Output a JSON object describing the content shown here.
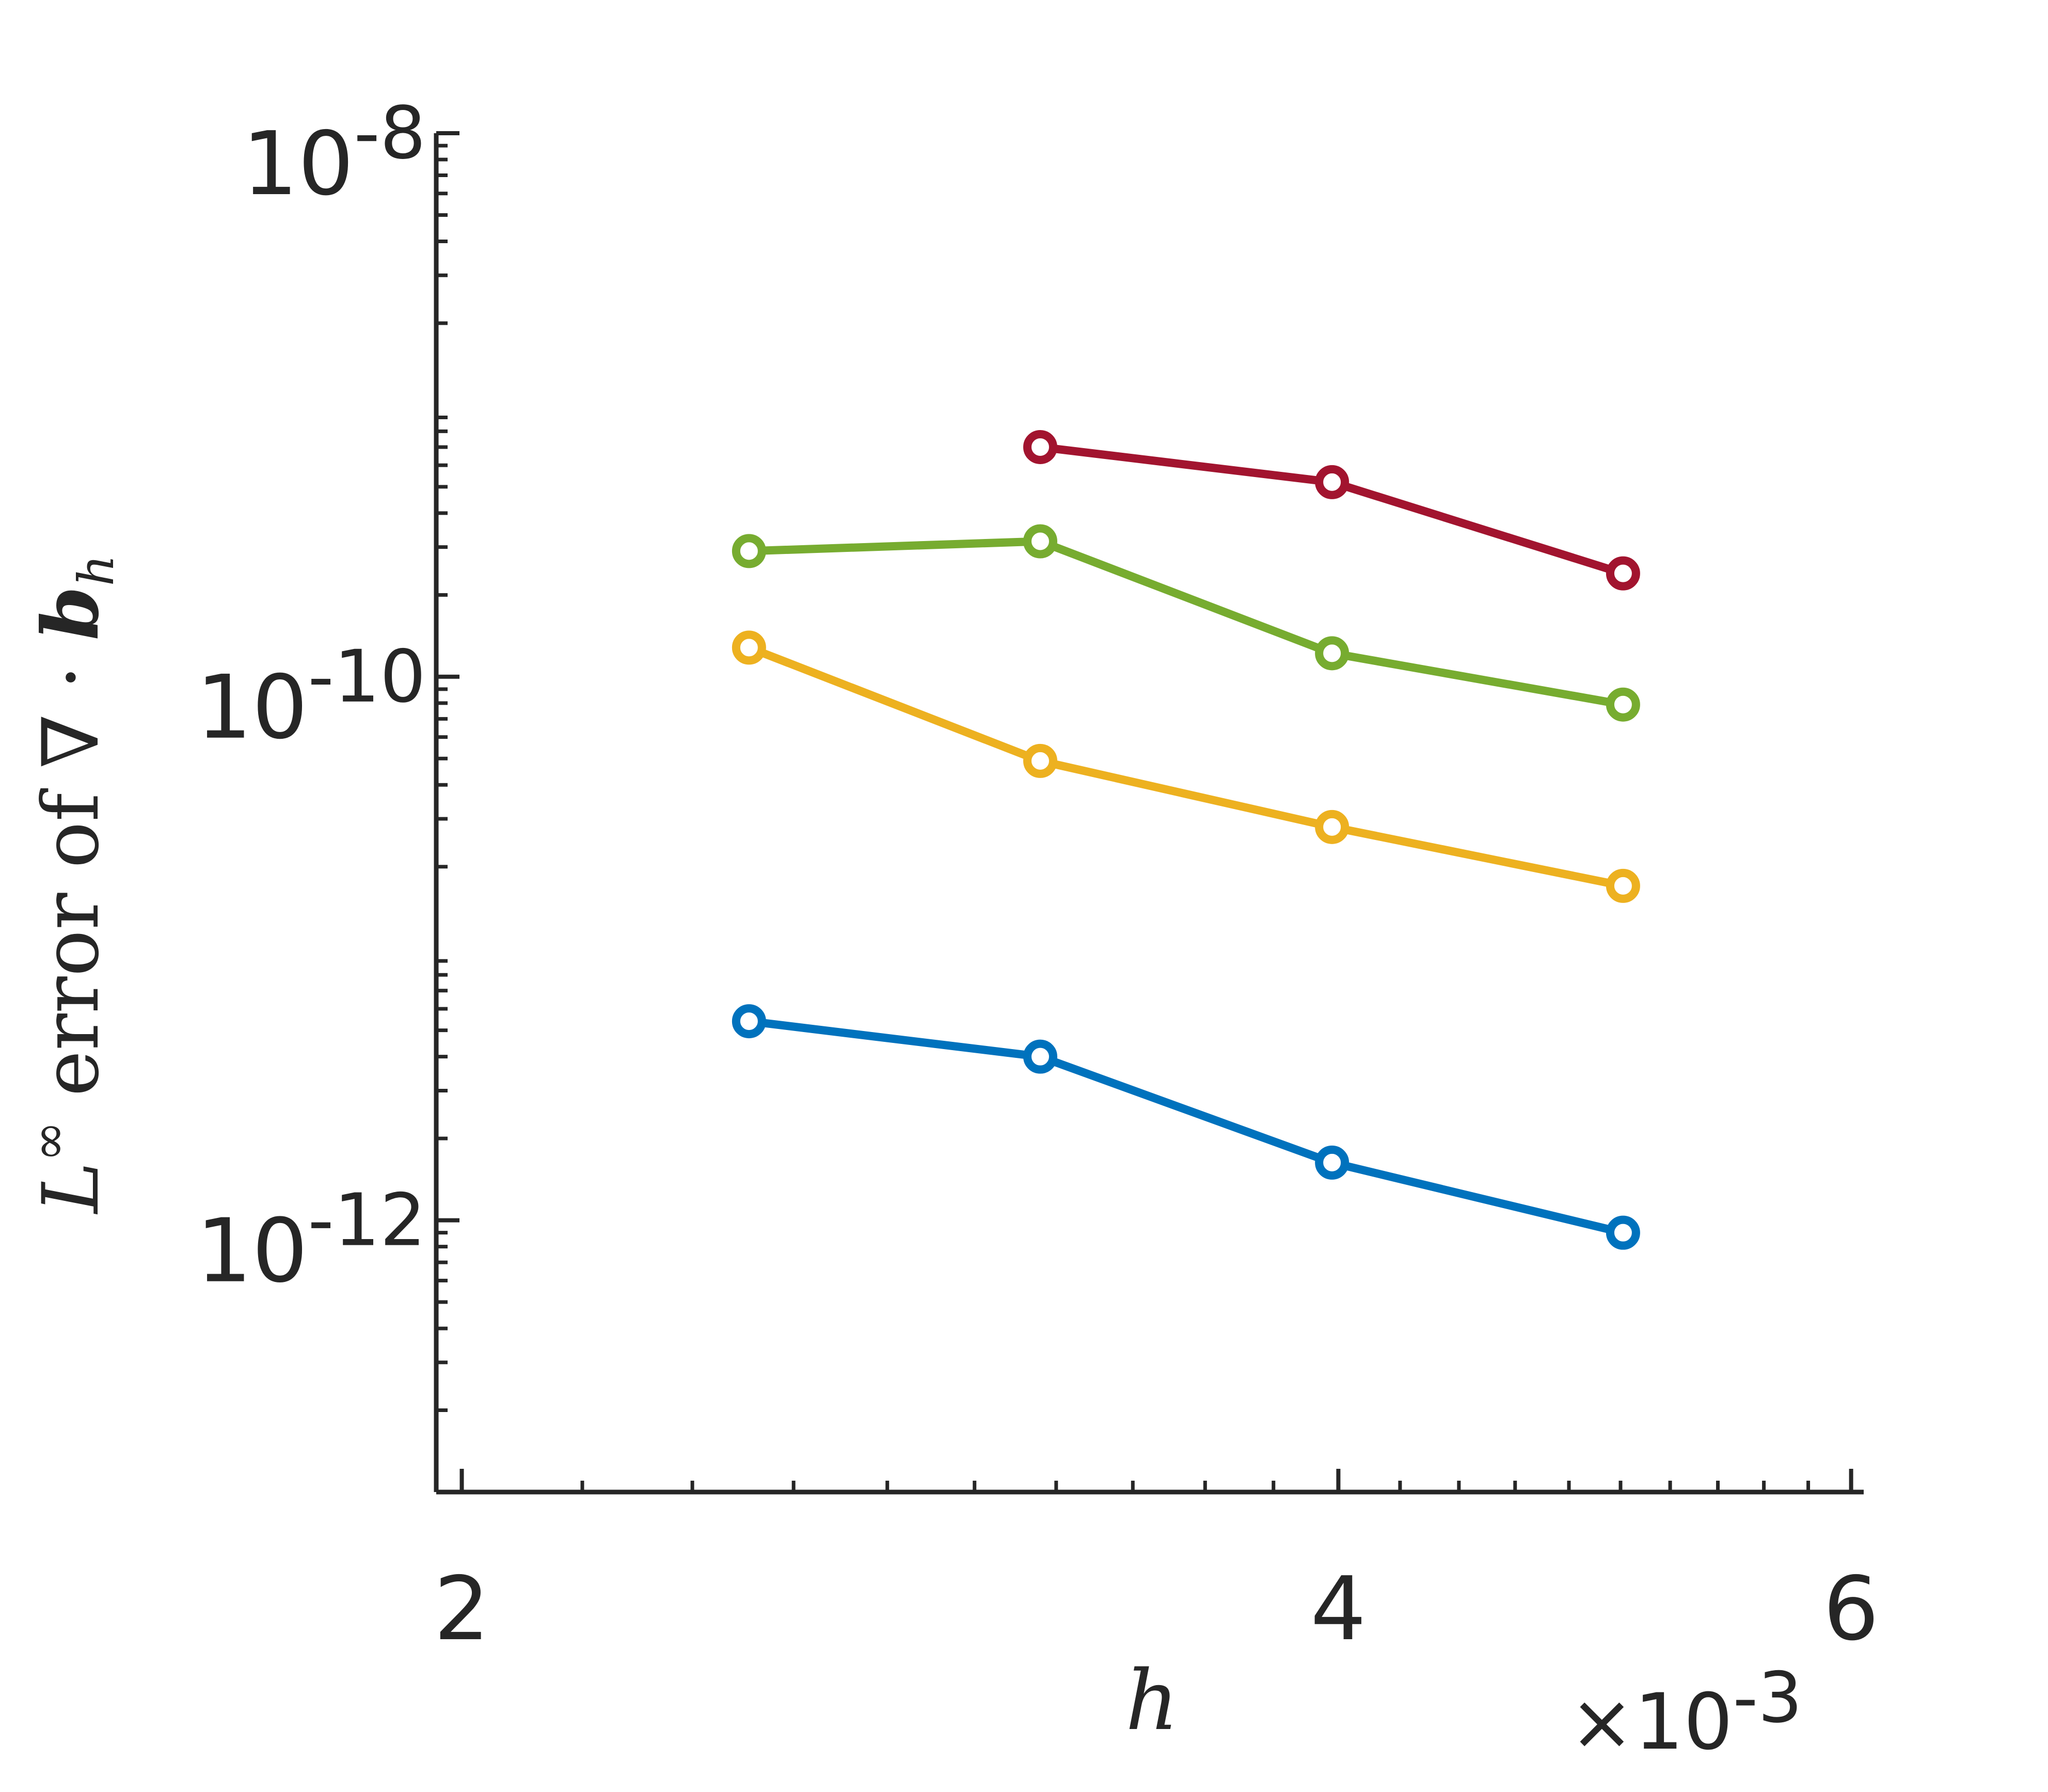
{
  "chart_data": {
    "type": "line",
    "xscale": "log",
    "yscale": "log",
    "xlim": [
      0.00196,
      0.00606
    ],
    "ylim": [
      1e-13,
      1e-08
    ],
    "xlabel": "h",
    "ylabel": {
      "prefix": "L",
      "superscript": "∞",
      "text": " error of ∇ · ",
      "bold_symbol": "b",
      "subscript": "h"
    },
    "x_ticks": [
      0.002,
      0.004,
      0.006
    ],
    "x_tick_labels": [
      "2",
      "4",
      "6"
    ],
    "x_exponent_label": {
      "base": "×10",
      "power": "-3"
    },
    "y_ticks": [
      1e-12,
      1e-10,
      1e-08
    ],
    "y_tick_labels": [
      {
        "base": "10",
        "power": "-12"
      },
      {
        "base": "10",
        "power": "-10"
      },
      {
        "base": "10",
        "power": "-8"
      }
    ],
    "grid": false,
    "legend": false,
    "series": [
      {
        "color": "#A2142F",
        "marker": "circle",
        "x": [
          0.00316,
          0.00398,
          0.00501
        ],
        "y": [
          7e-10,
          5.2e-10,
          2.4e-10
        ]
      },
      {
        "color": "#77AC30",
        "marker": "circle",
        "x": [
          0.00251,
          0.00316,
          0.00398,
          0.00501
        ],
        "y": [
          2.9e-10,
          3.15e-10,
          1.22e-10,
          7.9e-11
        ]
      },
      {
        "color": "#EDB120",
        "marker": "circle",
        "x": [
          0.00251,
          0.00316,
          0.00398,
          0.00501
        ],
        "y": [
          1.28e-10,
          4.9e-11,
          2.8e-11,
          1.7e-11
        ]
      },
      {
        "color": "#0072BD",
        "marker": "circle",
        "x": [
          0.00251,
          0.00316,
          0.00398,
          0.00501
        ],
        "y": [
          5.4e-12,
          4e-12,
          1.63e-12,
          9e-13
        ]
      }
    ]
  }
}
